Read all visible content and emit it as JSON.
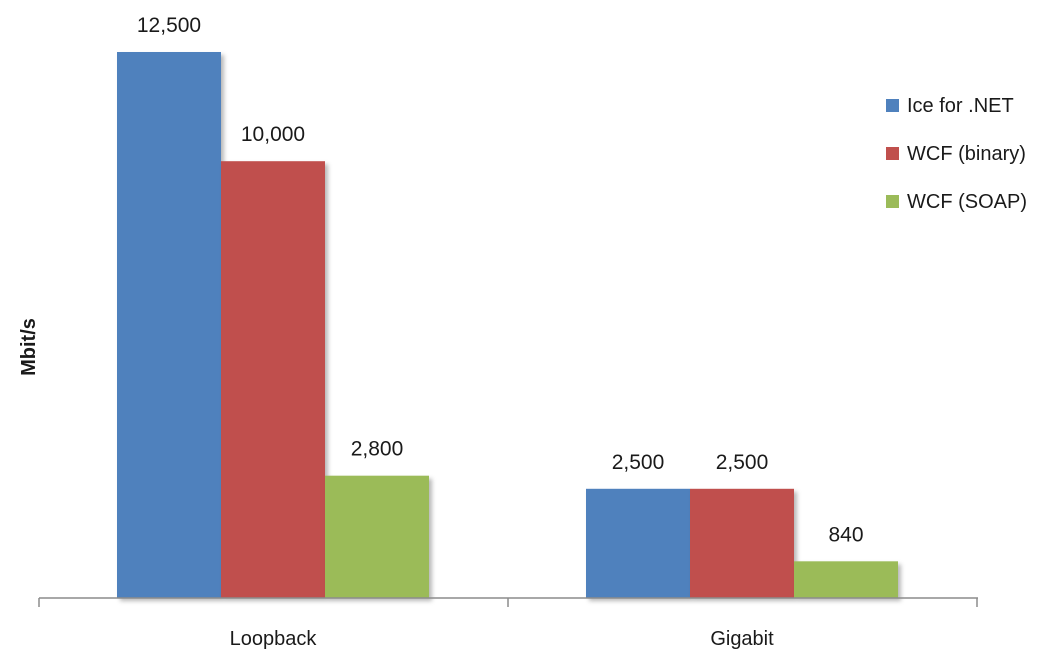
{
  "chart_data": {
    "type": "bar",
    "title": "",
    "xlabel": "",
    "ylabel": "Mbit/s",
    "categories": [
      "Loopback",
      "Gigabit"
    ],
    "series": [
      {
        "name": "Ice for .NET",
        "color": "#4f81bd",
        "values": [
          12500,
          2500
        ]
      },
      {
        "name": "WCF (binary)",
        "color": "#c0504d",
        "values": [
          10000,
          2500
        ]
      },
      {
        "name": "WCF (SOAP)",
        "color": "#9bbb59",
        "values": [
          2800,
          840
        ]
      }
    ],
    "data_labels": [
      [
        "12,500",
        "2,500"
      ],
      [
        "10,000",
        "2,500"
      ],
      [
        "2,800",
        "840"
      ]
    ],
    "ylim": [
      0,
      14000
    ],
    "grid": false,
    "legend_position": "right"
  }
}
